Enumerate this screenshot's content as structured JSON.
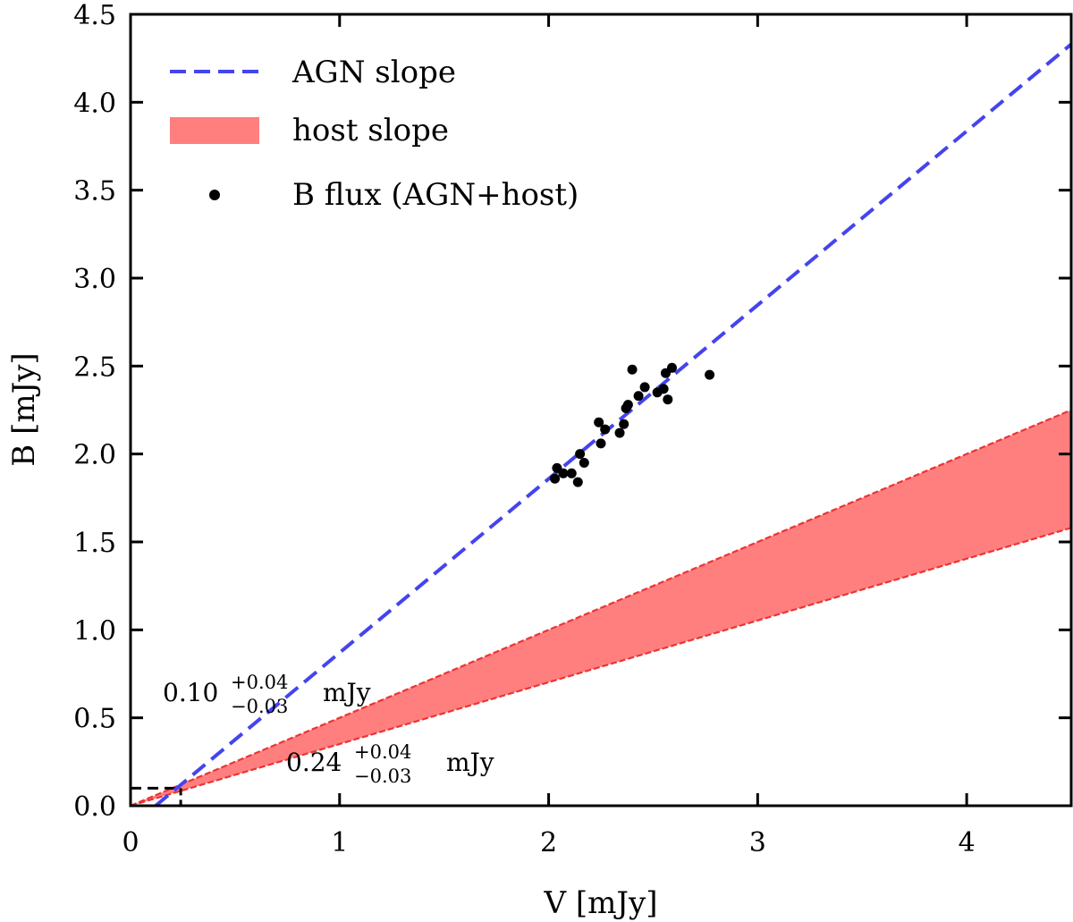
{
  "chart_data": {
    "type": "scatter",
    "title": "",
    "xlabel": "V [mJy]",
    "ylabel": "B [mJy]",
    "xlim": [
      0,
      4.5
    ],
    "ylim": [
      0,
      4.5
    ],
    "grid": false,
    "legend_position": "top-left",
    "x_ticks": [
      {
        "value": 0,
        "label": "0"
      },
      {
        "value": 1,
        "label": "1"
      },
      {
        "value": 2,
        "label": "2"
      },
      {
        "value": 3,
        "label": "3"
      },
      {
        "value": 4,
        "label": "4"
      }
    ],
    "y_ticks": [
      {
        "value": 0,
        "label": "0.0"
      },
      {
        "value": 0.5,
        "label": "0.5"
      },
      {
        "value": 1.0,
        "label": "1.0"
      },
      {
        "value": 1.5,
        "label": "1.5"
      },
      {
        "value": 2.0,
        "label": "2.0"
      },
      {
        "value": 2.5,
        "label": "2.5"
      },
      {
        "value": 3.0,
        "label": "3.0"
      },
      {
        "value": 3.5,
        "label": "3.5"
      },
      {
        "value": 4.0,
        "label": "4.0"
      },
      {
        "value": 4.5,
        "label": "4.5"
      }
    ],
    "agn_slope": {
      "name": "AGN slope",
      "color": "#4444ee",
      "style": "dashed",
      "points": [
        [
          0.12,
          0.0
        ],
        [
          4.5,
          4.33
        ]
      ]
    },
    "host_slope": {
      "name": "host slope",
      "fill_color": "#ff7f7f",
      "edge_color": "#ee3333",
      "upper": [
        [
          0.0,
          0.0
        ],
        [
          4.5,
          2.25
        ]
      ],
      "lower": [
        [
          0.0,
          0.0
        ],
        [
          4.5,
          1.58
        ]
      ]
    },
    "b_flux": {
      "name": "B flux (AGN+host)",
      "color": "#000000",
      "points": [
        [
          2.03,
          1.86
        ],
        [
          2.04,
          1.92
        ],
        [
          2.07,
          1.89
        ],
        [
          2.11,
          1.89
        ],
        [
          2.14,
          1.84
        ],
        [
          2.15,
          2.0
        ],
        [
          2.17,
          1.95
        ],
        [
          2.24,
          2.18
        ],
        [
          2.25,
          2.06
        ],
        [
          2.27,
          2.14
        ],
        [
          2.34,
          2.12
        ],
        [
          2.36,
          2.17
        ],
        [
          2.37,
          2.26
        ],
        [
          2.38,
          2.28
        ],
        [
          2.4,
          2.48
        ],
        [
          2.43,
          2.33
        ],
        [
          2.46,
          2.38
        ],
        [
          2.52,
          2.35
        ],
        [
          2.55,
          2.37
        ],
        [
          2.56,
          2.46
        ],
        [
          2.57,
          2.31
        ],
        [
          2.59,
          2.49
        ],
        [
          2.77,
          2.45
        ]
      ]
    },
    "host_reference": {
      "color": "#000000",
      "style": "dashed",
      "value": 0.1,
      "intersection_v": 0.24
    },
    "annotations": [
      {
        "base": "0.10",
        "sup": "+0.04",
        "sub": "−0.03",
        "unit": "mJy"
      },
      {
        "base": "0.24",
        "sup": "+0.04",
        "sub": "−0.03",
        "unit": "mJy"
      }
    ]
  }
}
